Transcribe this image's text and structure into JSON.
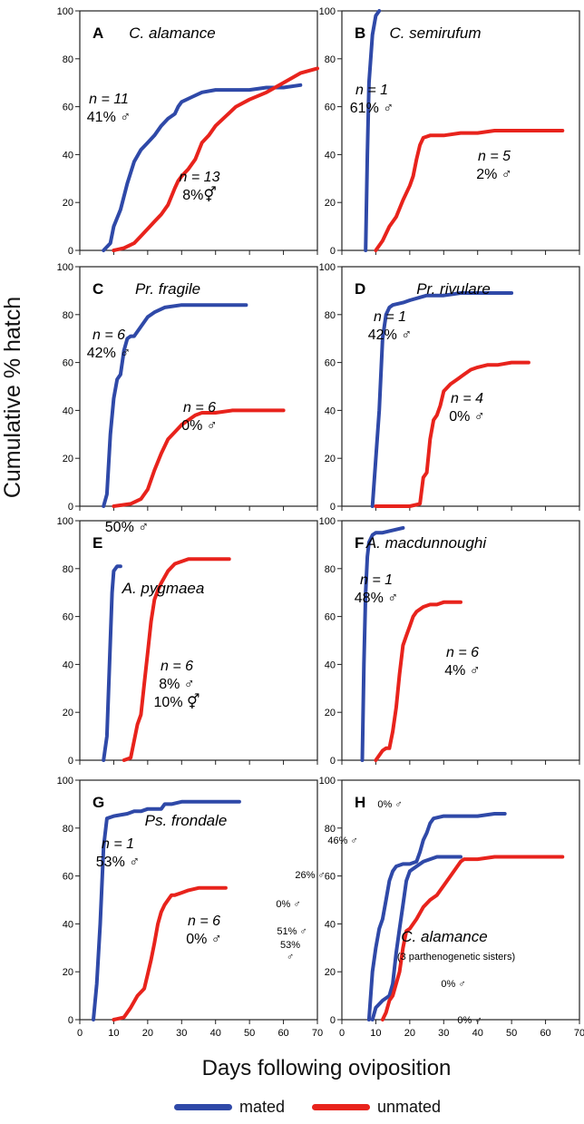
{
  "figure": {
    "ylabel": "Cumulative % hatch",
    "xlabel": "Days following oviposition",
    "legend": [
      {
        "label": "mated",
        "color": "#2f49a8"
      },
      {
        "label": "unmated",
        "color": "#e8231c"
      }
    ]
  },
  "chart_data": [
    {
      "type": "line",
      "panel": "A",
      "title": "C. alamance",
      "xlim": [
        0,
        70
      ],
      "ylim": [
        0,
        100
      ],
      "series": [
        {
          "name": "mated",
          "color": "#2f49a8",
          "x": [
            7,
            9,
            10,
            12,
            14,
            16,
            18,
            20,
            22,
            24,
            26,
            28,
            29,
            30,
            33,
            36,
            40,
            45,
            50,
            55,
            60,
            65
          ],
          "y": [
            0,
            3,
            10,
            17,
            28,
            37,
            42,
            45,
            48,
            52,
            55,
            57,
            60,
            62,
            64,
            66,
            67,
            67,
            67,
            68,
            68,
            69
          ]
        },
        {
          "name": "unmated",
          "color": "#e8231c",
          "x": [
            10,
            13,
            16,
            18,
            20,
            22,
            24,
            26,
            28,
            29,
            30,
            32,
            34,
            36,
            38,
            40,
            43,
            46,
            50,
            55,
            60,
            65,
            70
          ],
          "y": [
            0,
            1,
            3,
            6,
            9,
            12,
            15,
            19,
            26,
            29,
            31,
            34,
            38,
            45,
            48,
            52,
            56,
            60,
            63,
            66,
            70,
            74,
            76
          ]
        }
      ],
      "annotations": [
        {
          "text": "n = 11",
          "sex": "41% ♂"
        },
        {
          "text": "n = 13",
          "sex": "8%⚥"
        }
      ]
    },
    {
      "type": "line",
      "panel": "B",
      "title": "C. semirufum",
      "xlim": [
        0,
        70
      ],
      "ylim": [
        0,
        100
      ],
      "series": [
        {
          "name": "mated",
          "color": "#2f49a8",
          "x": [
            7,
            7.5,
            8,
            9,
            10,
            11
          ],
          "y": [
            0,
            40,
            70,
            90,
            98,
            100
          ]
        },
        {
          "name": "unmated",
          "color": "#e8231c",
          "x": [
            10,
            12,
            14,
            16,
            18,
            20,
            21,
            22,
            23,
            24,
            26,
            30,
            35,
            40,
            45,
            50,
            55,
            60,
            65
          ],
          "y": [
            0,
            4,
            10,
            14,
            21,
            27,
            31,
            38,
            44,
            47,
            48,
            48,
            49,
            49,
            50,
            50,
            50,
            50,
            50
          ]
        }
      ],
      "annotations": [
        {
          "text": "n = 1",
          "sex": "61% ♂"
        },
        {
          "text": "n = 5",
          "sex": "2% ♂"
        }
      ]
    },
    {
      "type": "line",
      "panel": "C",
      "title": "Pr. fragile",
      "xlim": [
        0,
        70
      ],
      "ylim": [
        0,
        100
      ],
      "series": [
        {
          "name": "mated",
          "color": "#2f49a8",
          "x": [
            7,
            8,
            9,
            10,
            11,
            12,
            13,
            14,
            15,
            16,
            18,
            20,
            22,
            25,
            30,
            35,
            40,
            45,
            49
          ],
          "y": [
            0,
            5,
            30,
            45,
            53,
            55,
            65,
            70,
            71,
            71,
            75,
            79,
            81,
            83,
            84,
            84,
            84,
            84,
            84
          ]
        },
        {
          "name": "unmated",
          "color": "#e8231c",
          "x": [
            10,
            15,
            18,
            20,
            22,
            24,
            26,
            28,
            30,
            32,
            34,
            36,
            40,
            45,
            50,
            55,
            60
          ],
          "y": [
            0,
            1,
            3,
            7,
            15,
            22,
            28,
            31,
            34,
            36,
            38,
            39,
            39,
            40,
            40,
            40,
            40
          ]
        }
      ],
      "annotations": [
        {
          "text": "n = 6",
          "sex": "42% ♂"
        },
        {
          "text": "n = 6",
          "sex": "0% ♂"
        }
      ]
    },
    {
      "type": "line",
      "panel": "D",
      "title": "Pr. rivulare",
      "xlim": [
        0,
        70
      ],
      "ylim": [
        0,
        100
      ],
      "series": [
        {
          "name": "mated",
          "color": "#2f49a8",
          "x": [
            9,
            11,
            12,
            13,
            14,
            15,
            18,
            20,
            25,
            30,
            35,
            40,
            45,
            50
          ],
          "y": [
            0,
            40,
            70,
            80,
            83,
            84,
            85,
            86,
            88,
            88,
            89,
            89,
            89,
            89
          ]
        },
        {
          "name": "unmated",
          "color": "#e8231c",
          "x": [
            10,
            15,
            20,
            23,
            24,
            25,
            26,
            27,
            28,
            29,
            30,
            32,
            34,
            36,
            38,
            40,
            43,
            46,
            50,
            55
          ],
          "y": [
            0,
            0,
            0,
            1,
            12,
            14,
            28,
            36,
            38,
            42,
            48,
            51,
            53,
            55,
            57,
            58,
            59,
            59,
            60,
            60
          ]
        }
      ],
      "annotations": [
        {
          "text": "n = 1",
          "sex": "42% ♂"
        },
        {
          "text": "n = 4",
          "sex": "0% ♂"
        }
      ]
    },
    {
      "type": "line",
      "panel": "E",
      "title": "A. pygmaea",
      "xlim": [
        0,
        70
      ],
      "ylim": [
        0,
        100
      ],
      "series": [
        {
          "name": "mated",
          "color": "#2f49a8",
          "x": [
            7,
            8,
            9,
            9.5,
            10,
            11,
            12
          ],
          "y": [
            0,
            10,
            50,
            70,
            79,
            81,
            81
          ]
        },
        {
          "name": "unmated",
          "color": "#e8231c",
          "x": [
            13,
            15,
            17,
            18,
            19,
            20,
            21,
            22,
            23,
            24,
            26,
            28,
            30,
            32,
            35,
            40,
            44
          ],
          "y": [
            0,
            1,
            15,
            19,
            32,
            45,
            58,
            67,
            71,
            74,
            79,
            82,
            83,
            84,
            84,
            84,
            84
          ]
        }
      ],
      "annotations": [
        {
          "text": "50% ♂"
        },
        {
          "text": "n = 6",
          "sex": "8% ♂",
          "extra": "10% ⚥"
        }
      ]
    },
    {
      "type": "line",
      "panel": "F",
      "title": "A. macdunnoughi",
      "xlim": [
        0,
        70
      ],
      "ylim": [
        0,
        100
      ],
      "series": [
        {
          "name": "mated",
          "color": "#2f49a8",
          "x": [
            6,
            6.5,
            7,
            7.5,
            8,
            9,
            10,
            12,
            15,
            18
          ],
          "y": [
            0,
            40,
            70,
            85,
            91,
            94,
            95,
            95,
            96,
            97
          ]
        },
        {
          "name": "unmated",
          "color": "#e8231c",
          "x": [
            10,
            12,
            13,
            14,
            15,
            16,
            17,
            18,
            19,
            20,
            21,
            22,
            24,
            26,
            28,
            30,
            32,
            35
          ],
          "y": [
            0,
            4,
            5,
            5,
            12,
            22,
            36,
            48,
            52,
            56,
            60,
            62,
            64,
            65,
            65,
            66,
            66,
            66
          ]
        }
      ],
      "annotations": [
        {
          "text": "n = 1",
          "sex": "48% ♂"
        },
        {
          "text": "n = 6",
          "sex": "4% ♂"
        }
      ]
    },
    {
      "type": "line",
      "panel": "G",
      "title": "Ps. frondale",
      "xlim": [
        0,
        70
      ],
      "ylim": [
        0,
        100
      ],
      "series": [
        {
          "name": "mated",
          "color": "#2f49a8",
          "x": [
            4,
            5,
            6,
            7,
            8,
            10,
            14,
            16,
            18,
            20,
            22,
            24,
            25,
            27,
            30,
            35,
            40,
            45,
            47
          ],
          "y": [
            0,
            15,
            40,
            72,
            84,
            85,
            86,
            87,
            87,
            88,
            88,
            88,
            90,
            90,
            91,
            91,
            91,
            91,
            91
          ]
        },
        {
          "name": "unmated",
          "color": "#e8231c",
          "x": [
            10,
            13,
            15,
            17,
            19,
            20,
            21,
            22,
            23,
            24,
            25,
            26,
            27,
            28,
            30,
            32,
            35,
            38,
            40,
            43
          ],
          "y": [
            0,
            1,
            5,
            10,
            13,
            19,
            25,
            32,
            40,
            45,
            48,
            50,
            52,
            52,
            53,
            54,
            55,
            55,
            55,
            55
          ]
        }
      ],
      "annotations": [
        {
          "text": "n = 1",
          "sex": "53% ♂"
        },
        {
          "text": "n = 6",
          "sex": "0% ♂"
        }
      ]
    },
    {
      "type": "line",
      "panel": "H",
      "title": "C. alamance",
      "subtitle": "(3 parthenogenetic sisters)",
      "xlim": [
        0,
        70
      ],
      "ylim": [
        0,
        100
      ],
      "series": [
        {
          "name": "mated",
          "color": "#2f49a8",
          "x": [
            8,
            9,
            10,
            11,
            12,
            13,
            14,
            15,
            16,
            18,
            20,
            22,
            23,
            24,
            25,
            26,
            27,
            30,
            35,
            40,
            45,
            48
          ],
          "y": [
            0,
            20,
            30,
            38,
            42,
            50,
            58,
            62,
            64,
            65,
            65,
            66,
            70,
            75,
            78,
            82,
            84,
            85,
            85,
            85,
            86,
            86
          ]
        },
        {
          "name": "mated",
          "color": "#2f49a8",
          "x": [
            9,
            10,
            12,
            14,
            15,
            16,
            17,
            18,
            19,
            20,
            22,
            24,
            26,
            28,
            30,
            32,
            35
          ],
          "y": [
            0,
            5,
            8,
            10,
            15,
            28,
            38,
            48,
            58,
            62,
            64,
            66,
            67,
            68,
            68,
            68,
            68
          ]
        },
        {
          "name": "unmated",
          "color": "#e8231c",
          "x": [
            12,
            13,
            14,
            15,
            17,
            18,
            19,
            20,
            22,
            24,
            26,
            28,
            30,
            32,
            34,
            35,
            36,
            40,
            45,
            50,
            55,
            60,
            65
          ],
          "y": [
            0,
            3,
            8,
            10,
            20,
            30,
            37,
            38,
            42,
            47,
            50,
            52,
            56,
            60,
            64,
            66,
            67,
            67,
            68,
            68,
            68,
            68,
            68
          ]
        }
      ],
      "annotations": [
        {
          "text": "0% ♂"
        },
        {
          "text": "46% ♂"
        },
        {
          "text": "26% ♂"
        },
        {
          "text": "0% ♂"
        },
        {
          "text": "51% ♂"
        },
        {
          "text": "53%",
          "sex": "♂"
        },
        {
          "text": "0% ♂"
        },
        {
          "text": "0% ♂"
        }
      ]
    }
  ],
  "axes": {
    "y_ticks": [
      "0",
      "20",
      "40",
      "60",
      "80",
      "100"
    ],
    "x_ticks": [
      "0",
      "10",
      "20",
      "30",
      "40",
      "50",
      "60",
      "70"
    ]
  }
}
